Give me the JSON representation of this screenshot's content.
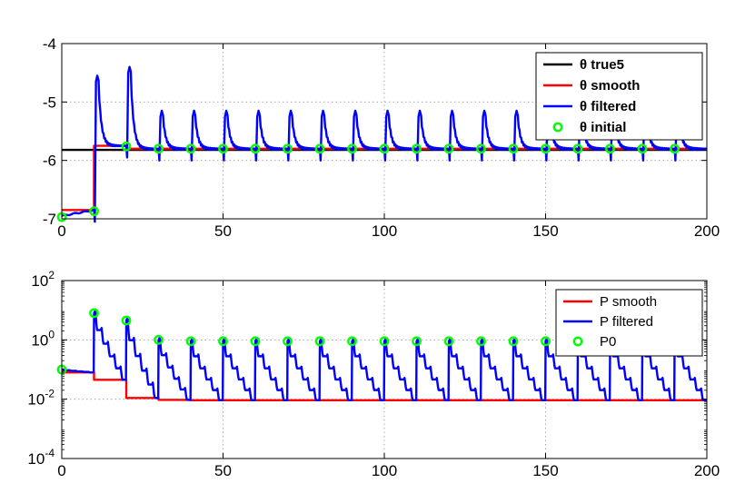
{
  "chart_data": [
    {
      "type": "line",
      "title": "",
      "xlabel": "",
      "ylabel": "",
      "xlim": [
        0,
        200
      ],
      "ylim": [
        -7,
        -4
      ],
      "grid": true,
      "legend_position": "top-right",
      "x_ticks": [
        "0",
        "50",
        "100",
        "150",
        "200"
      ],
      "y_ticks": [
        "-7",
        "-6",
        "-5",
        "-4"
      ],
      "x_tick_values": [
        0,
        50,
        100,
        150,
        200
      ],
      "y_tick_values": [
        -7,
        -6,
        -5,
        -4
      ],
      "cycle_length": 10,
      "cycles": 20,
      "legend": [
        {
          "label": "θ true5",
          "color": "#000000",
          "marker": "line"
        },
        {
          "label": "θ smooth",
          "color": "#ff0000",
          "marker": "line"
        },
        {
          "label": "θ filtered",
          "color": "#0000ff",
          "marker": "line"
        },
        {
          "label": "θ initial",
          "color": "#00ff00",
          "marker": "circle"
        }
      ],
      "series": [
        {
          "name": "θ true5",
          "color": "#000000",
          "x": [
            0,
            200
          ],
          "y": [
            -5.82,
            -5.82
          ]
        },
        {
          "name": "θ smooth",
          "color": "#ff0000",
          "x": [
            0,
            10,
            10,
            20,
            20,
            200
          ],
          "y": [
            -6.85,
            -6.85,
            -5.75,
            -5.75,
            -5.8,
            -5.8
          ]
        },
        {
          "name": "θ filtered",
          "color": "#0000ff",
          "cycle_starts": [
            -6.95,
            -6.85,
            -5.75,
            -5.8,
            -5.8,
            -5.8,
            -5.8,
            -5.8,
            -5.8,
            -5.8,
            -5.8,
            -5.8,
            -5.8,
            -5.8,
            -5.8,
            -5.8,
            -5.8,
            -5.8,
            -5.8,
            -5.8
          ],
          "cycle_peaks": [
            -6.9,
            -4.65,
            -4.5,
            -5.25,
            -5.25,
            -5.25,
            -5.25,
            -5.25,
            -5.25,
            -5.25,
            -5.25,
            -5.25,
            -5.25,
            -5.25,
            -5.25,
            -5.25,
            -5.25,
            -5.25,
            -5.25,
            -5.25
          ],
          "cycle_ends": [
            -6.85,
            -5.75,
            -5.8,
            -5.8,
            -5.8,
            -5.8,
            -5.8,
            -5.8,
            -5.8,
            -5.8,
            -5.8,
            -5.8,
            -5.8,
            -5.8,
            -5.8,
            -5.8,
            -5.8,
            -5.8,
            -5.8,
            -5.8
          ]
        },
        {
          "name": "θ initial",
          "color": "#00ff00",
          "x": [
            0,
            10,
            20,
            30,
            40,
            50,
            60,
            70,
            80,
            90,
            100,
            110,
            120,
            130,
            140,
            150,
            160,
            170,
            180,
            190
          ],
          "y": [
            -6.97,
            -6.87,
            -5.76,
            -5.8,
            -5.8,
            -5.8,
            -5.8,
            -5.8,
            -5.8,
            -5.8,
            -5.8,
            -5.8,
            -5.8,
            -5.8,
            -5.8,
            -5.8,
            -5.8,
            -5.8,
            -5.8,
            -5.8
          ]
        }
      ]
    },
    {
      "type": "line",
      "title": "",
      "xlabel": "",
      "ylabel": "",
      "xlim": [
        0,
        200
      ],
      "ylim": [
        0.0001,
        100
      ],
      "yscale": "log",
      "grid": true,
      "legend_position": "top-right",
      "x_ticks": [
        "0",
        "50",
        "100",
        "150",
        "200"
      ],
      "x_tick_values": [
        0,
        50,
        100,
        150,
        200
      ],
      "y_ticks": [
        {
          "base": "10",
          "exp": "-4",
          "value": 0.0001
        },
        {
          "base": "10",
          "exp": "-2",
          "value": 0.01
        },
        {
          "base": "10",
          "exp": "0",
          "value": 1
        },
        {
          "base": "10",
          "exp": "2",
          "value": 100
        }
      ],
      "cycle_length": 10,
      "cycles": 20,
      "legend": [
        {
          "label": "P smooth",
          "color": "#ff0000",
          "marker": "line"
        },
        {
          "label": "P filtered",
          "color": "#0000ff",
          "marker": "line"
        },
        {
          "label": "P0",
          "color": "#00ff00",
          "marker": "circle"
        }
      ],
      "series": [
        {
          "name": "P smooth",
          "color": "#ff0000",
          "x": [
            0,
            10,
            10,
            20,
            20,
            30,
            30,
            40,
            40,
            200
          ],
          "y": [
            0.08,
            0.08,
            0.045,
            0.045,
            0.011,
            0.011,
            0.0095,
            0.0095,
            0.0092,
            0.0092
          ]
        },
        {
          "name": "P filtered",
          "color": "#0000ff",
          "cycle_starts": [
            0.1,
            8,
            4.5,
            1,
            0.9,
            0.9,
            0.9,
            0.9,
            0.9,
            0.9,
            0.9,
            0.9,
            0.9,
            0.9,
            0.9,
            0.9,
            0.9,
            0.9,
            0.9,
            0.9
          ],
          "cycle_ends": [
            0.08,
            0.045,
            0.011,
            0.0095,
            0.0092,
            0.0092,
            0.0092,
            0.0092,
            0.0092,
            0.0092,
            0.0092,
            0.0092,
            0.0092,
            0.0092,
            0.0092,
            0.0092,
            0.0092,
            0.0092,
            0.0092,
            0.0092
          ]
        },
        {
          "name": "P0",
          "color": "#00ff00",
          "x": [
            0,
            10,
            20,
            30,
            40,
            50,
            60,
            70,
            80,
            90,
            100,
            110,
            120,
            130,
            140,
            150,
            160,
            170,
            180,
            190
          ],
          "y": [
            0.1,
            8,
            4.5,
            1,
            0.9,
            0.9,
            0.9,
            0.9,
            0.9,
            0.9,
            0.9,
            0.9,
            0.9,
            0.9,
            0.9,
            0.9,
            0.9,
            0.9,
            0.9,
            0.9
          ]
        }
      ]
    }
  ]
}
